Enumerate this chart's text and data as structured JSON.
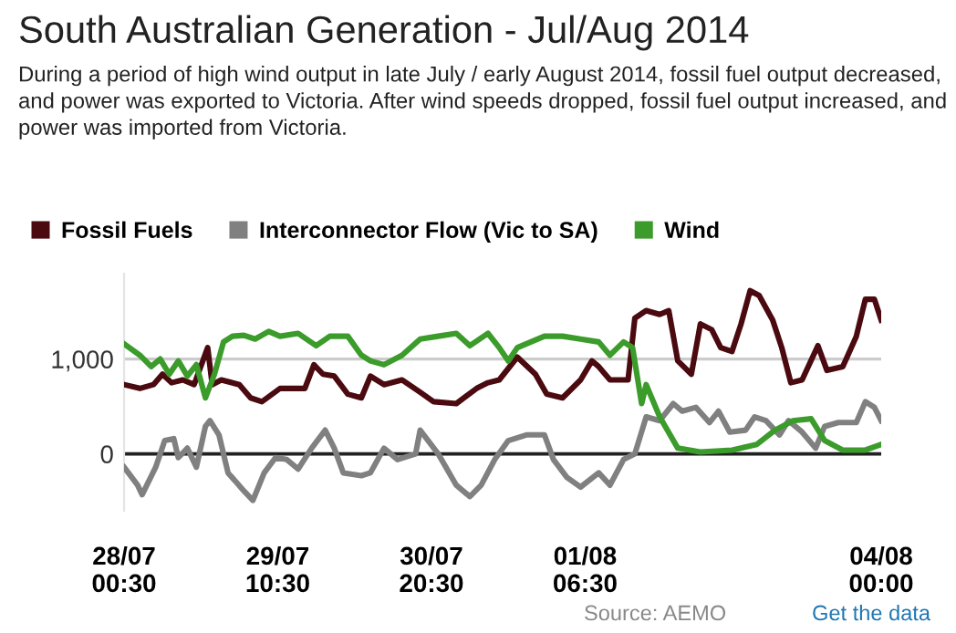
{
  "chart_data": {
    "type": "line",
    "title": "South Australian Generation - Jul/Aug 2014",
    "subtitle": "During a period of high wind output in late July / early August 2014, fossil fuel output decreased, and power was exported to Victoria. After wind speeds dropped, fossil fuel output increased, and power was imported from Victoria.",
    "series": [
      {
        "name": "Fossil Fuels",
        "color": "#4a0a10",
        "x": [
          "2014-07-28T00:30",
          "2014-07-28T04:00",
          "2014-07-28T07:00",
          "2014-07-28T09:00",
          "2014-07-28T11:00",
          "2014-07-28T13:30",
          "2014-07-28T16:00",
          "2014-07-28T19:00",
          "2014-07-28T20:00",
          "2014-07-28T22:00",
          "2014-07-29T02:00",
          "2014-07-29T04:30",
          "2014-07-29T07:00",
          "2014-07-29T11:00",
          "2014-07-29T16:30",
          "2014-07-29T18:30",
          "2014-07-29T20:30",
          "2014-07-29T23:00",
          "2014-07-30T02:00",
          "2014-07-30T05:00",
          "2014-07-30T07:00",
          "2014-07-30T10:00",
          "2014-07-30T14:00",
          "2014-07-30T18:00",
          "2014-07-30T21:00",
          "2014-07-31T02:00",
          "2014-07-31T06:30",
          "2014-07-31T09:00",
          "2014-07-31T11:30",
          "2014-07-31T15:30",
          "2014-07-31T19:30",
          "2014-07-31T22:00",
          "2014-08-01T01:30",
          "2014-08-01T05:30",
          "2014-08-01T08:00",
          "2014-08-01T09:30",
          "2014-08-01T12:00",
          "2014-08-01T16:00",
          "2014-08-01T17:30",
          "2014-08-01T20:00",
          "2014-08-01T23:00",
          "2014-08-02T01:00",
          "2014-08-02T03:00",
          "2014-08-02T06:00",
          "2014-08-02T08:00",
          "2014-08-02T10:30",
          "2014-08-02T12:30",
          "2014-08-02T15:00",
          "2014-08-02T17:00",
          "2014-08-02T19:00",
          "2014-08-02T21:00",
          "2014-08-03T00:00",
          "2014-08-03T02:00",
          "2014-08-03T04:00",
          "2014-08-03T06:30",
          "2014-08-03T10:00",
          "2014-08-03T12:00",
          "2014-08-03T15:30",
          "2014-08-03T18:30",
          "2014-08-03T20:30",
          "2014-08-03T22:30",
          "2014-08-04T00:00"
        ],
        "values": [
          730,
          690,
          730,
          840,
          750,
          780,
          730,
          1120,
          730,
          780,
          730,
          590,
          550,
          690,
          690,
          940,
          840,
          820,
          630,
          590,
          820,
          730,
          780,
          650,
          550,
          530,
          690,
          750,
          780,
          1020,
          840,
          630,
          590,
          780,
          980,
          920,
          780,
          780,
          1430,
          1510,
          1470,
          1510,
          980,
          840,
          1370,
          1310,
          1120,
          1080,
          1370,
          1720,
          1670,
          1410,
          1120,
          750,
          780,
          1140,
          880,
          920,
          1240,
          1630,
          1630,
          1410
        ]
      },
      {
        "name": "Interconnector Flow (Vic to SA)",
        "color": "#808080",
        "x": [
          "2014-07-28T00:30",
          "2014-07-28T03:30",
          "2014-07-28T04:30",
          "2014-07-28T07:30",
          "2014-07-28T09:30",
          "2014-07-28T11:30",
          "2014-07-28T12:30",
          "2014-07-28T14:30",
          "2014-07-28T16:30",
          "2014-07-28T18:30",
          "2014-07-28T19:30",
          "2014-07-28T21:30",
          "2014-07-28T23:30",
          "2014-07-29T03:00",
          "2014-07-29T05:00",
          "2014-07-29T07:30",
          "2014-07-29T10:00",
          "2014-07-29T12:30",
          "2014-07-29T15:00",
          "2014-07-29T18:00",
          "2014-07-29T21:00",
          "2014-07-29T23:00",
          "2014-07-30T01:00",
          "2014-07-30T05:00",
          "2014-07-30T07:00",
          "2014-07-30T10:00",
          "2014-07-30T13:00",
          "2014-07-30T17:00",
          "2014-07-30T18:00",
          "2014-07-30T22:00",
          "2014-07-31T02:00",
          "2014-07-31T05:00",
          "2014-07-31T07:30",
          "2014-07-31T10:30",
          "2014-07-31T13:30",
          "2014-07-31T17:30",
          "2014-07-31T21:30",
          "2014-07-31T23:30",
          "2014-08-01T02:30",
          "2014-08-01T05:30",
          "2014-08-01T09:30",
          "2014-08-01T12:00",
          "2014-08-01T15:00",
          "2014-08-01T17:30",
          "2014-08-01T20:00",
          "2014-08-01T23:00",
          "2014-08-02T02:00",
          "2014-08-02T04:00",
          "2014-08-02T07:00",
          "2014-08-02T10:00",
          "2014-08-02T12:00",
          "2014-08-02T14:30",
          "2014-08-02T18:00",
          "2014-08-02T20:00",
          "2014-08-02T22:30",
          "2014-08-03T01:30",
          "2014-08-03T03:30",
          "2014-08-03T06:30",
          "2014-08-03T09:30",
          "2014-08-03T11:30",
          "2014-08-03T14:30",
          "2014-08-03T18:30",
          "2014-08-03T20:30",
          "2014-08-03T22:30",
          "2014-08-04T00:00"
        ],
        "values": [
          -140,
          -330,
          -430,
          -140,
          140,
          160,
          -40,
          60,
          -140,
          290,
          350,
          200,
          -200,
          -390,
          -490,
          -200,
          -40,
          -60,
          -160,
          60,
          250,
          60,
          -200,
          -230,
          -200,
          60,
          -60,
          0,
          250,
          0,
          -330,
          -450,
          -330,
          -60,
          140,
          200,
          200,
          -60,
          -250,
          -350,
          -200,
          -330,
          -60,
          0,
          390,
          350,
          530,
          450,
          490,
          330,
          450,
          230,
          250,
          390,
          350,
          200,
          350,
          230,
          60,
          290,
          330,
          330,
          550,
          490,
          350
        ]
      },
      {
        "name": "Wind",
        "color": "#3b9b2b",
        "x": [
          "2014-07-28T00:30",
          "2014-07-28T04:00",
          "2014-07-28T06:30",
          "2014-07-28T08:30",
          "2014-07-28T10:30",
          "2014-07-28T12:30",
          "2014-07-28T14:30",
          "2014-07-28T16:30",
          "2014-07-28T18:30",
          "2014-07-28T20:30",
          "2014-07-28T22:30",
          "2014-07-29T00:30",
          "2014-07-29T03:00",
          "2014-07-29T05:30",
          "2014-07-29T08:30",
          "2014-07-29T11:00",
          "2014-07-29T15:00",
          "2014-07-29T19:00",
          "2014-07-29T22:00",
          "2014-07-30T02:00",
          "2014-07-30T05:00",
          "2014-07-30T07:00",
          "2014-07-30T10:00",
          "2014-07-30T14:00",
          "2014-07-30T18:00",
          "2014-07-30T22:00",
          "2014-07-31T02:00",
          "2014-07-31T05:00",
          "2014-07-31T09:00",
          "2014-07-31T11:30",
          "2014-07-31T13:30",
          "2014-07-31T15:30",
          "2014-07-31T18:30",
          "2014-07-31T21:30",
          "2014-08-01T01:30",
          "2014-08-01T05:30",
          "2014-08-01T09:30",
          "2014-08-01T12:00",
          "2014-08-01T15:00",
          "2014-08-01T17:00",
          "2014-08-01T19:00",
          "2014-08-01T20:00",
          "2014-08-01T23:00",
          "2014-08-02T03:00",
          "2014-08-02T08:00",
          "2014-08-02T15:00",
          "2014-08-02T20:30",
          "2014-08-03T00:30",
          "2014-08-03T04:30",
          "2014-08-03T08:30",
          "2014-08-03T11:30",
          "2014-08-03T15:30",
          "2014-08-03T20:30",
          "2014-08-04T00:00"
        ],
        "values": [
          1160,
          1040,
          920,
          1000,
          840,
          980,
          820,
          940,
          590,
          840,
          1180,
          1240,
          1250,
          1210,
          1290,
          1240,
          1270,
          1140,
          1240,
          1240,
          1040,
          980,
          940,
          1040,
          1210,
          1240,
          1270,
          1140,
          1270,
          1120,
          980,
          1120,
          1180,
          1240,
          1240,
          1210,
          1180,
          1040,
          1180,
          1120,
          530,
          730,
          390,
          60,
          20,
          40,
          100,
          250,
          350,
          370,
          140,
          40,
          40,
          100
        ]
      }
    ],
    "xlim": [
      "2014-07-28T00:30",
      "2014-08-04T00:00"
    ],
    "xticks": [
      {
        "value": "2014-07-28T00:30",
        "label": "28/07\n00:30"
      },
      {
        "value": "2014-07-29T10:30",
        "label": "29/07\n10:30"
      },
      {
        "value": "2014-07-30T20:30",
        "label": "30/07\n20:30"
      },
      {
        "value": "2014-08-01T06:30",
        "label": "01/08\n06:30"
      },
      {
        "value": "2014-08-04T00:00",
        "label": "04/08\n00:00"
      }
    ],
    "ylim": [
      -600,
      1900
    ],
    "yticks": [
      {
        "value": 0,
        "label": "0"
      },
      {
        "value": 1000,
        "label": "1,000"
      }
    ],
    "grid": "y",
    "legend": "top left",
    "marker": "none",
    "line_style": "solid",
    "annotations": [
      "Source: AEMO",
      "Get the data"
    ]
  }
}
